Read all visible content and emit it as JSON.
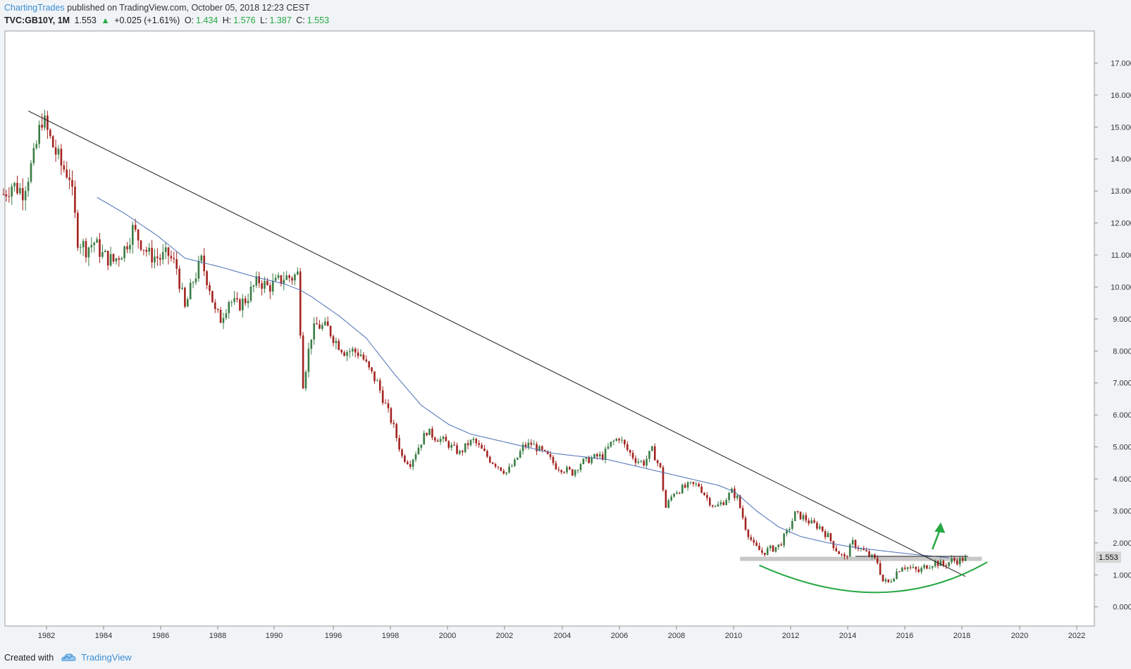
{
  "header": {
    "author": "ChartingTrades",
    "published_text": "published on TradingView.com, October 05, 2018 12:23 CEST",
    "symbol": "TVC:GB10Y, 1M",
    "last": "1.553",
    "change": "+0.025 (+1.61%)",
    "open_label": "O:",
    "open": "1.434",
    "high_label": "H:",
    "high": "1.576",
    "low_label": "L:",
    "low": "1.387",
    "close_label": "C:",
    "close": "1.553"
  },
  "footer": {
    "created_with": "Created with",
    "brand": "TradingView"
  },
  "colors": {
    "up": "#3a7d44",
    "down": "#a3231f",
    "ma": "#4a6fb5",
    "trendline": "#1a1a1a",
    "curve": "#27a844",
    "arrow": "#27a844",
    "support": "#c8c8c8",
    "price_badge": "#d6d6d6"
  },
  "chart_data": {
    "type": "candlestick",
    "symbol": "TVC:GB10Y",
    "interval": "1M",
    "ylim": [
      -0.6,
      18.0
    ],
    "y_ticks": [
      "0.000",
      "1.000",
      "2.000",
      "3.000",
      "4.000",
      "5.000",
      "6.000",
      "7.000",
      "8.000",
      "9.000",
      "10.000",
      "11.000",
      "12.000",
      "13.000",
      "14.000",
      "15.000",
      "16.000",
      "17.000"
    ],
    "x_ticks": [
      "1982",
      "1984",
      "1986",
      "1988",
      "1990",
      "1996",
      "1998",
      "2000",
      "2002",
      "2004",
      "2006",
      "2008",
      "2010",
      "2012",
      "2014",
      "2016",
      "2018",
      "2020",
      "2022"
    ],
    "current_price": "1.553",
    "series": [
      {
        "name": "price (approx. path)",
        "anchors": [
          [
            0,
            12.9
          ],
          [
            3,
            13.2
          ],
          [
            7,
            13.0
          ],
          [
            11,
            14.0
          ],
          [
            14,
            15.3
          ],
          [
            17,
            14.6
          ],
          [
            21,
            13.8
          ],
          [
            24,
            13.5
          ],
          [
            27,
            11.5
          ],
          [
            30,
            11.2
          ],
          [
            33,
            11.4
          ],
          [
            36,
            11.0
          ],
          [
            40,
            10.8
          ],
          [
            44,
            11.2
          ],
          [
            47,
            11.8
          ],
          [
            50,
            11.4
          ],
          [
            53,
            11.0
          ],
          [
            57,
            10.9
          ],
          [
            60,
            11.0
          ],
          [
            63,
            10.6
          ],
          [
            66,
            9.3
          ],
          [
            69,
            10.2
          ],
          [
            72,
            10.8
          ],
          [
            75,
            10.0
          ],
          [
            77,
            9.2
          ],
          [
            79,
            9.0
          ],
          [
            82,
            9.6
          ],
          [
            85,
            9.4
          ],
          [
            88,
            9.6
          ],
          [
            91,
            10.0
          ],
          [
            93,
            10.2
          ],
          [
            96,
            10.0
          ],
          [
            99,
            10.1
          ],
          [
            102,
            10.3
          ],
          [
            105,
            10.3
          ],
          [
            107,
            10.4
          ],
          [
            109,
            7.0
          ],
          [
            112,
            8.5
          ],
          [
            114,
            8.8
          ],
          [
            118,
            8.7
          ],
          [
            121,
            8.3
          ],
          [
            124,
            8.0
          ],
          [
            127,
            8.0
          ],
          [
            130,
            7.9
          ],
          [
            133,
            7.4
          ],
          [
            136,
            7.0
          ],
          [
            139,
            6.3
          ],
          [
            142,
            5.6
          ],
          [
            145,
            4.7
          ],
          [
            148,
            4.5
          ],
          [
            151,
            5.0
          ],
          [
            154,
            5.5
          ],
          [
            157,
            5.3
          ],
          [
            160,
            5.2
          ],
          [
            163,
            5.0
          ],
          [
            166,
            4.8
          ],
          [
            169,
            5.1
          ],
          [
            171,
            5.2
          ],
          [
            174,
            4.9
          ],
          [
            177,
            4.6
          ],
          [
            180,
            4.4
          ],
          [
            183,
            4.2
          ],
          [
            186,
            4.5
          ],
          [
            189,
            5.0
          ],
          [
            192,
            5.1
          ],
          [
            195,
            4.9
          ],
          [
            198,
            4.7
          ],
          [
            201,
            4.4
          ],
          [
            204,
            4.3
          ],
          [
            207,
            4.2
          ],
          [
            210,
            4.5
          ],
          [
            213,
            4.6
          ],
          [
            216,
            4.7
          ],
          [
            218,
            4.7
          ],
          [
            221,
            5.1
          ],
          [
            224,
            5.3
          ],
          [
            227,
            4.9
          ],
          [
            230,
            4.6
          ],
          [
            233,
            4.5
          ],
          [
            236,
            4.9
          ],
          [
            239,
            4.3
          ],
          [
            241,
            3.1
          ],
          [
            244,
            3.6
          ],
          [
            247,
            3.7
          ],
          [
            250,
            3.8
          ],
          [
            253,
            3.8
          ],
          [
            256,
            3.4
          ],
          [
            259,
            3.1
          ],
          [
            262,
            3.3
          ],
          [
            265,
            3.6
          ],
          [
            267,
            3.4
          ],
          [
            270,
            2.5
          ],
          [
            273,
            1.9
          ],
          [
            276,
            1.7
          ],
          [
            279,
            1.8
          ],
          [
            282,
            1.9
          ],
          [
            285,
            2.3
          ],
          [
            288,
            2.9
          ],
          [
            291,
            2.8
          ],
          [
            294,
            2.6
          ],
          [
            297,
            2.5
          ],
          [
            300,
            2.2
          ],
          [
            303,
            1.8
          ],
          [
            306,
            1.5
          ],
          [
            309,
            2.0
          ],
          [
            312,
            1.8
          ],
          [
            315,
            1.6
          ],
          [
            318,
            1.4
          ],
          [
            320,
            0.8
          ],
          [
            322,
            0.75
          ],
          [
            324,
            1.0
          ],
          [
            327,
            1.3
          ],
          [
            330,
            1.2
          ],
          [
            333,
            1.1
          ],
          [
            336,
            1.3
          ],
          [
            339,
            1.4
          ],
          [
            342,
            1.3
          ],
          [
            345,
            1.45
          ],
          [
            348,
            1.45
          ],
          [
            350,
            1.55
          ]
        ]
      },
      {
        "name": "moving average (approx. path)",
        "anchors": [
          [
            34,
            12.8
          ],
          [
            44,
            12.3
          ],
          [
            56,
            11.6
          ],
          [
            66,
            10.9
          ],
          [
            80,
            10.6
          ],
          [
            92,
            10.3
          ],
          [
            102,
            10.1
          ],
          [
            108,
            9.9
          ],
          [
            112,
            9.7
          ],
          [
            122,
            9.1
          ],
          [
            132,
            8.4
          ],
          [
            142,
            7.3
          ],
          [
            152,
            6.3
          ],
          [
            162,
            5.7
          ],
          [
            170,
            5.4
          ],
          [
            180,
            5.2
          ],
          [
            190,
            5.0
          ],
          [
            200,
            4.8
          ],
          [
            210,
            4.7
          ],
          [
            220,
            4.6
          ],
          [
            230,
            4.4
          ],
          [
            240,
            4.2
          ],
          [
            250,
            4.0
          ],
          [
            260,
            3.8
          ],
          [
            266,
            3.6
          ],
          [
            274,
            3.0
          ],
          [
            282,
            2.5
          ],
          [
            290,
            2.2
          ],
          [
            300,
            2.0
          ],
          [
            310,
            1.85
          ],
          [
            320,
            1.75
          ],
          [
            330,
            1.65
          ],
          [
            340,
            1.57
          ],
          [
            344,
            1.53
          ]
        ]
      }
    ],
    "annotations": [
      {
        "type": "trendline",
        "from": {
          "month": 9,
          "value": 15.5
        },
        "to": {
          "month": 350,
          "value": 0.95
        }
      },
      {
        "type": "horizontal_line",
        "value": 1.58,
        "from_month": 310,
        "to_month": 351
      },
      {
        "type": "support_zone",
        "value": 1.5,
        "from_month": 268,
        "to_month": 356
      },
      {
        "type": "rounding_bottom_curve",
        "start_month": 275,
        "end_month": 358,
        "start_value": 1.3,
        "low_value": 0.45,
        "end_value": 1.4
      },
      {
        "type": "arrow_up",
        "month": 338,
        "from_value": 1.8,
        "to_value": 2.55
      }
    ]
  }
}
